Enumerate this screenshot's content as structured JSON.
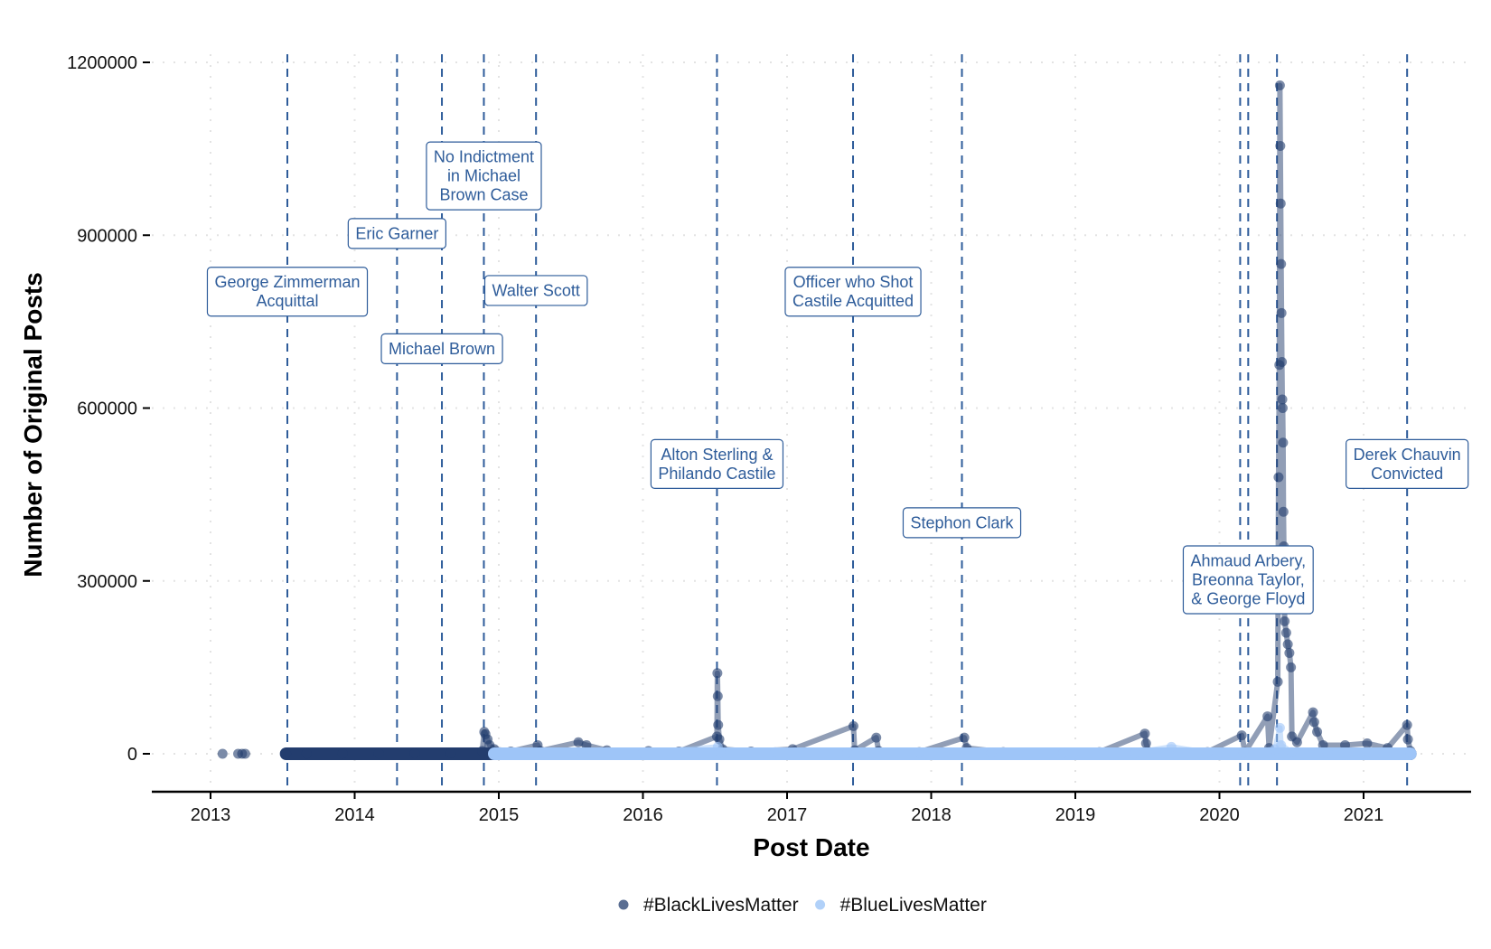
{
  "chart_data": {
    "type": "line",
    "title": "",
    "xlabel": "Post Date",
    "ylabel": "Number of Original Posts",
    "xlim": [
      "2012-08-01",
      "2021-09-15"
    ],
    "ylim": [
      -60000,
      1250000
    ],
    "x_ticks": [
      "2013",
      "2014",
      "2015",
      "2016",
      "2017",
      "2018",
      "2019",
      "2020",
      "2021"
    ],
    "y_ticks": [
      0,
      300000,
      600000,
      900000,
      1200000
    ],
    "grid": "dotted major gridlines",
    "legend_position": "bottom",
    "series": [
      {
        "name": "#BlackLivesMatter",
        "color": "#233d6e",
        "points": [
          [
            "2013-02-01",
            0
          ],
          [
            "2013-03-10",
            0
          ],
          [
            "2013-03-20",
            0
          ],
          [
            "2013-03-28",
            0
          ],
          [
            "2013-07-10",
            0
          ],
          [
            "2013-09-01",
            500
          ],
          [
            "2013-12-01",
            500
          ],
          [
            "2014-03-01",
            600
          ],
          [
            "2014-06-01",
            700
          ],
          [
            "2014-09-01",
            900
          ],
          [
            "2014-11-20",
            5000
          ],
          [
            "2014-11-25",
            38000
          ],
          [
            "2014-11-28",
            34000
          ],
          [
            "2014-12-03",
            25000
          ],
          [
            "2014-12-08",
            15000
          ],
          [
            "2014-12-20",
            8000
          ],
          [
            "2015-02-01",
            4000
          ],
          [
            "2015-04-08",
            15000
          ],
          [
            "2015-04-15",
            5000
          ],
          [
            "2015-07-20",
            20000
          ],
          [
            "2015-08-10",
            15000
          ],
          [
            "2015-10-01",
            6000
          ],
          [
            "2016-01-15",
            5000
          ],
          [
            "2016-04-01",
            4000
          ],
          [
            "2016-07-06",
            30000
          ],
          [
            "2016-07-07",
            140000
          ],
          [
            "2016-07-08",
            100000
          ],
          [
            "2016-07-09",
            50000
          ],
          [
            "2016-07-12",
            25000
          ],
          [
            "2016-07-20",
            8000
          ],
          [
            "2016-10-01",
            4000
          ],
          [
            "2017-01-15",
            8000
          ],
          [
            "2017-06-17",
            48000
          ],
          [
            "2017-06-20",
            6000
          ],
          [
            "2017-08-14",
            28000
          ],
          [
            "2017-08-20",
            5000
          ],
          [
            "2017-12-01",
            3000
          ],
          [
            "2018-03-24",
            28000
          ],
          [
            "2018-03-30",
            10000
          ],
          [
            "2018-07-01",
            3000
          ],
          [
            "2018-12-01",
            2000
          ],
          [
            "2019-03-01",
            3000
          ],
          [
            "2019-06-25",
            35000
          ],
          [
            "2019-06-28",
            18000
          ],
          [
            "2019-07-05",
            3000
          ],
          [
            "2019-12-01",
            3000
          ],
          [
            "2020-02-27",
            32000
          ],
          [
            "2020-03-05",
            3000
          ],
          [
            "2020-05-01",
            65000
          ],
          [
            "2020-05-05",
            10000
          ],
          [
            "2020-05-27",
            125000
          ],
          [
            "2020-05-29",
            480000
          ],
          [
            "2020-05-31",
            675000
          ],
          [
            "2020-06-02",
            1160000
          ],
          [
            "2020-06-03",
            1055000
          ],
          [
            "2020-06-04",
            955000
          ],
          [
            "2020-06-05",
            850000
          ],
          [
            "2020-06-06",
            765000
          ],
          [
            "2020-06-07",
            680000
          ],
          [
            "2020-06-08",
            615000
          ],
          [
            "2020-06-09",
            600000
          ],
          [
            "2020-06-10",
            540000
          ],
          [
            "2020-06-11",
            420000
          ],
          [
            "2020-06-12",
            360000
          ],
          [
            "2020-06-14",
            230000
          ],
          [
            "2020-06-18",
            210000
          ],
          [
            "2020-06-22",
            190000
          ],
          [
            "2020-06-26",
            175000
          ],
          [
            "2020-06-30",
            150000
          ],
          [
            "2020-07-02",
            30000
          ],
          [
            "2020-07-15",
            20000
          ],
          [
            "2020-08-25",
            72000
          ],
          [
            "2020-08-28",
            55000
          ],
          [
            "2020-09-05",
            38000
          ],
          [
            "2020-09-20",
            15000
          ],
          [
            "2020-11-15",
            15000
          ],
          [
            "2021-01-10",
            18000
          ],
          [
            "2021-03-01",
            10000
          ],
          [
            "2021-04-20",
            50000
          ],
          [
            "2021-04-22",
            25000
          ],
          [
            "2021-04-28",
            5000
          ]
        ]
      },
      {
        "name": "#BlueLivesMatter",
        "color": "#9ec5f8",
        "points": [
          [
            "2014-12-20",
            0
          ],
          [
            "2015-03-01",
            1000
          ],
          [
            "2015-08-01",
            1000
          ],
          [
            "2016-01-01",
            1500
          ],
          [
            "2016-07-08",
            12000
          ],
          [
            "2016-07-15",
            2000
          ],
          [
            "2016-12-01",
            3000
          ],
          [
            "2017-06-01",
            2000
          ],
          [
            "2017-12-01",
            2000
          ],
          [
            "2018-06-01",
            1500
          ],
          [
            "2018-12-01",
            1500
          ],
          [
            "2019-06-01",
            2000
          ],
          [
            "2019-09-01",
            12000
          ],
          [
            "2019-12-01",
            2000
          ],
          [
            "2020-03-01",
            2000
          ],
          [
            "2020-05-20",
            8000
          ],
          [
            "2020-06-02",
            45000
          ],
          [
            "2020-06-05",
            15000
          ],
          [
            "2020-07-01",
            3000
          ],
          [
            "2020-10-01",
            2000
          ],
          [
            "2021-01-15",
            2000
          ],
          [
            "2021-04-28",
            1000
          ]
        ]
      }
    ],
    "events": [
      {
        "date": "2013-07-13",
        "label": [
          "George Zimmerman",
          "Acquittal"
        ],
        "label_y": 802000
      },
      {
        "date": "2014-04-17",
        "label": [
          "Eric Garner"
        ],
        "label_y": 903000
      },
      {
        "date": "2014-08-09",
        "label": [
          "Michael Brown"
        ],
        "label_y": 703000
      },
      {
        "date": "2014-11-24",
        "label": [
          "No Indictment",
          "in Michael",
          "Brown Case"
        ],
        "label_y": 1003000
      },
      {
        "date": "2015-04-04",
        "label": [
          "Walter Scott"
        ],
        "label_y": 804000
      },
      {
        "date": "2016-07-06",
        "label": [
          "Alton Sterling &",
          "Philando Castile"
        ],
        "label_y": 503000
      },
      {
        "date": "2017-06-16",
        "label": [
          "Officer who Shot",
          "Castile Acquitted"
        ],
        "label_y": 802000
      },
      {
        "date": "2018-03-18",
        "label": [
          "Stephon Clark"
        ],
        "label_y": 401000
      },
      {
        "date": "2020-02-23",
        "label": [],
        "label_y": null
      },
      {
        "date": "2020-03-13",
        "label": [
          "Ahmaud Arbery,",
          "Breonna Taylor,",
          "& George Floyd"
        ],
        "label_y": 302000
      },
      {
        "date": "2020-05-25",
        "label": [],
        "label_y": null
      },
      {
        "date": "2021-04-20",
        "label": [
          "Derek Chauvin",
          "Convicted"
        ],
        "label_y": 503000
      }
    ],
    "event_line_color": "#2e5c9a"
  }
}
